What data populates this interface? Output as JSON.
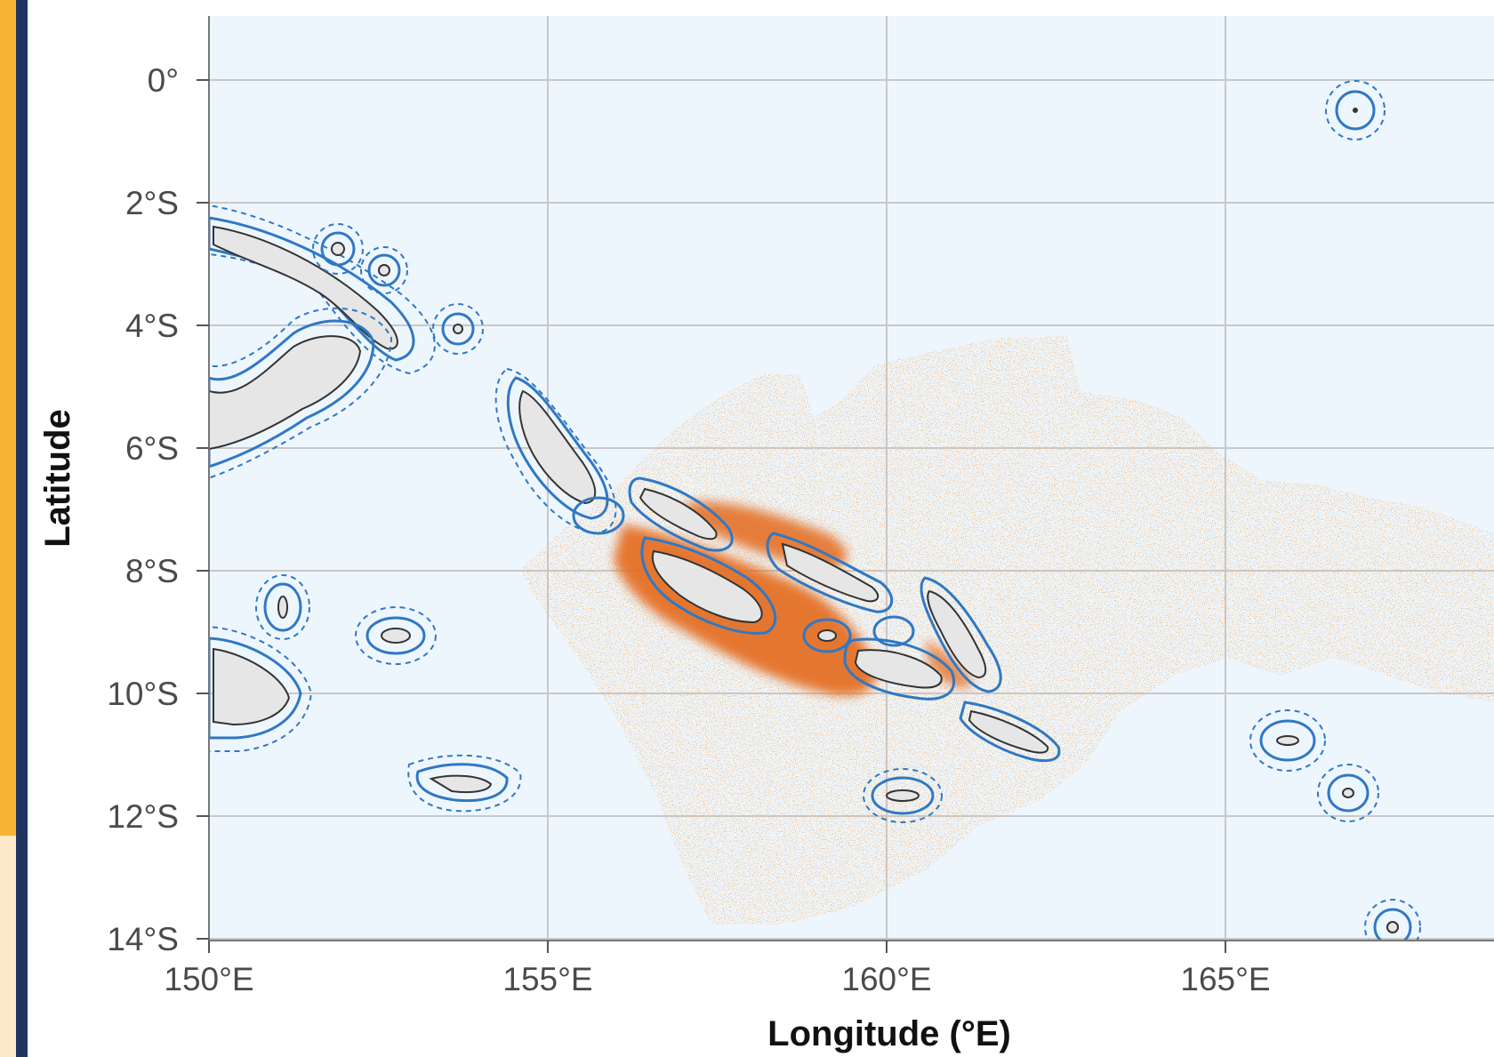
{
  "map": {
    "x_axis": {
      "title": "Longitude (°E)",
      "ticks": [
        {
          "value": 150,
          "label": "150°E"
        },
        {
          "value": 155,
          "label": "155°E"
        },
        {
          "value": 160,
          "label": "160°E"
        },
        {
          "value": 165,
          "label": "165°E"
        }
      ],
      "range": [
        150,
        169
      ]
    },
    "y_axis": {
      "title": "Latitude",
      "ticks": [
        {
          "value": 0,
          "label": "0°"
        },
        {
          "value": -2,
          "label": "2°S"
        },
        {
          "value": -4,
          "label": "4°S"
        },
        {
          "value": -6,
          "label": "6°S"
        },
        {
          "value": -8,
          "label": "8°S"
        },
        {
          "value": -10,
          "label": "10°S"
        },
        {
          "value": -12,
          "label": "12°S"
        },
        {
          "value": -14,
          "label": "14°S"
        }
      ],
      "range": [
        -14,
        1
      ]
    },
    "grid": true,
    "colors": {
      "ocean": "#eef6fd",
      "land": "#e6e6e6",
      "coast": "#333333",
      "buffer": "#2f78c4",
      "points": "#e0732a",
      "grid": "#c8c8c8"
    }
  }
}
